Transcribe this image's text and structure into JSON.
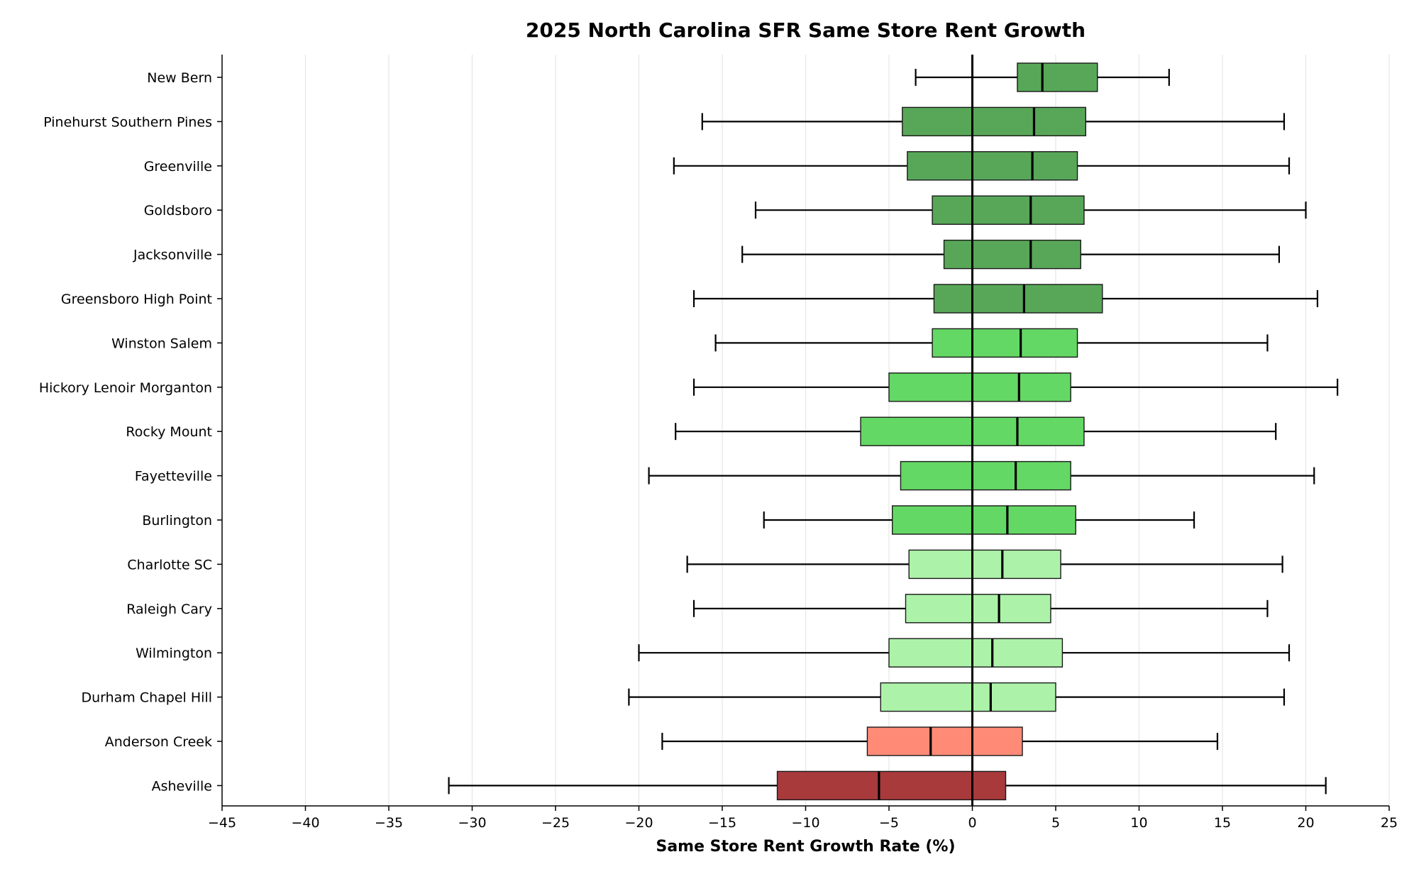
{
  "chart_data": {
    "type": "boxplot",
    "orientation": "horizontal",
    "title": "2025 North Carolina SFR Same Store Rent Growth",
    "xlabel": "Same Store Rent Growth Rate (%)",
    "ylabel": "",
    "xlim": [
      -45,
      25
    ],
    "xticks": [
      -45,
      -40,
      -35,
      -30,
      -25,
      -20,
      -15,
      -10,
      -5,
      0,
      5,
      10,
      15,
      20,
      25
    ],
    "xtick_labels": [
      "−45",
      "−40",
      "−35",
      "−30",
      "−25",
      "−20",
      "−15",
      "−10",
      "−5",
      "0",
      "5",
      "10",
      "15",
      "20",
      "25"
    ],
    "grid": "vertical",
    "reference_line": 0,
    "series": [
      {
        "name": "New Bern",
        "whisker_low": -3.4,
        "q1": 2.7,
        "median": 4.2,
        "q3": 7.5,
        "whisker_high": 11.8,
        "color": "#58a758"
      },
      {
        "name": "Pinehurst Southern Pines",
        "whisker_low": -16.2,
        "q1": -4.2,
        "median": 3.7,
        "q3": 6.8,
        "whisker_high": 18.7,
        "color": "#58a758"
      },
      {
        "name": "Greenville",
        "whisker_low": -17.9,
        "q1": -3.9,
        "median": 3.6,
        "q3": 6.3,
        "whisker_high": 19.0,
        "color": "#58a758"
      },
      {
        "name": "Goldsboro",
        "whisker_low": -13.0,
        "q1": -2.4,
        "median": 3.5,
        "q3": 6.7,
        "whisker_high": 20.0,
        "color": "#58a758"
      },
      {
        "name": "Jacksonville",
        "whisker_low": -13.8,
        "q1": -1.7,
        "median": 3.5,
        "q3": 6.5,
        "whisker_high": 18.4,
        "color": "#58a758"
      },
      {
        "name": "Greensboro High Point",
        "whisker_low": -16.7,
        "q1": -2.3,
        "median": 3.1,
        "q3": 7.8,
        "whisker_high": 20.7,
        "color": "#58a758"
      },
      {
        "name": "Winston Salem",
        "whisker_low": -15.4,
        "q1": -2.4,
        "median": 2.9,
        "q3": 6.3,
        "whisker_high": 17.7,
        "color": "#64d864"
      },
      {
        "name": "Hickory Lenoir Morganton",
        "whisker_low": -16.7,
        "q1": -5.0,
        "median": 2.8,
        "q3": 5.9,
        "whisker_high": 21.9,
        "color": "#64d864"
      },
      {
        "name": "Rocky Mount",
        "whisker_low": -17.8,
        "q1": -6.7,
        "median": 2.7,
        "q3": 6.7,
        "whisker_high": 18.2,
        "color": "#64d864"
      },
      {
        "name": "Fayetteville",
        "whisker_low": -19.4,
        "q1": -4.3,
        "median": 2.6,
        "q3": 5.9,
        "whisker_high": 20.5,
        "color": "#64d864"
      },
      {
        "name": "Burlington",
        "whisker_low": -12.5,
        "q1": -4.8,
        "median": 2.1,
        "q3": 6.2,
        "whisker_high": 13.3,
        "color": "#64d864"
      },
      {
        "name": "Charlotte SC",
        "whisker_low": -17.1,
        "q1": -3.8,
        "median": 1.8,
        "q3": 5.3,
        "whisker_high": 18.6,
        "color": "#adf2a9"
      },
      {
        "name": "Raleigh Cary",
        "whisker_low": -16.7,
        "q1": -4.0,
        "median": 1.6,
        "q3": 4.7,
        "whisker_high": 17.7,
        "color": "#adf2a9"
      },
      {
        "name": "Wilmington",
        "whisker_low": -20.0,
        "q1": -5.0,
        "median": 1.2,
        "q3": 5.4,
        "whisker_high": 19.0,
        "color": "#adf2a9"
      },
      {
        "name": "Durham Chapel Hill",
        "whisker_low": -20.6,
        "q1": -5.5,
        "median": 1.1,
        "q3": 5.0,
        "whisker_high": 18.7,
        "color": "#adf2a9"
      },
      {
        "name": "Anderson Creek",
        "whisker_low": -18.6,
        "q1": -6.3,
        "median": -2.5,
        "q3": 3.0,
        "whisker_high": 14.7,
        "color": "#ff8b77"
      },
      {
        "name": "Asheville",
        "whisker_low": -31.4,
        "q1": -11.7,
        "median": -5.6,
        "q3": 2.0,
        "whisker_high": 21.2,
        "color": "#a83a3c"
      }
    ]
  }
}
